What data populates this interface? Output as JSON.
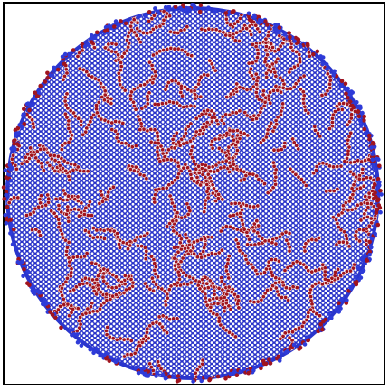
{
  "figure": {
    "description_free": true,
    "colors": {
      "background": "#ffffff",
      "frame": "#000000",
      "disc_fill": "#ffffff",
      "blue_particle": "#1a23c8",
      "red_particle": "#a0141e",
      "edge_blue": "#2e3bd8"
    },
    "particle_types": [
      "blue-particle",
      "red-particle"
    ]
  }
}
